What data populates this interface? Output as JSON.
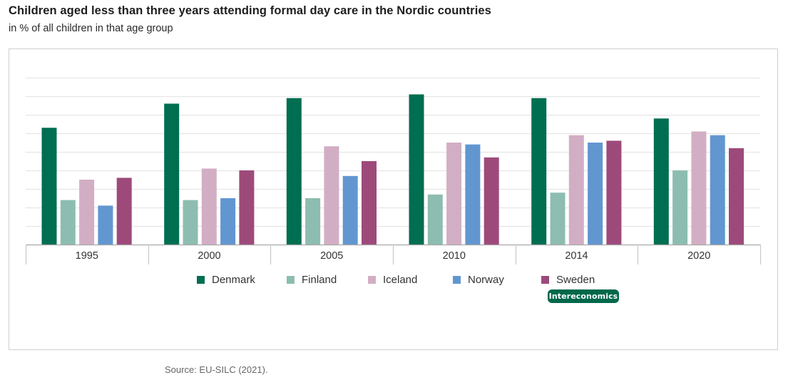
{
  "header": {
    "title": "Children aged less than three years attending formal day care in the Nordic countries",
    "subtitle": "in % of all children in that age group"
  },
  "branding": {
    "badge_label": "Intereconomics",
    "badge_color": "#00684a"
  },
  "footer": {
    "source": "Source: EU-SILC (2021)."
  },
  "chart_data": {
    "type": "bar",
    "title": "Children aged less than three years attending formal day care in the Nordic countries",
    "subtitle": "in % of all children in that age group",
    "xlabel": "",
    "ylabel": "",
    "unit": "%",
    "categories": [
      "1995",
      "2000",
      "2005",
      "2010",
      "2014",
      "2020"
    ],
    "series": [
      {
        "name": "Denmark",
        "color": "#006e51",
        "values": [
          63,
          76,
          79,
          81,
          79,
          68
        ]
      },
      {
        "name": "Finland",
        "color": "#8dbdb0",
        "values": [
          24,
          24,
          25,
          27,
          28,
          40
        ]
      },
      {
        "name": "Iceland",
        "color": "#d2aec4",
        "values": [
          35,
          41,
          53,
          55,
          59,
          61
        ]
      },
      {
        "name": "Norway",
        "color": "#6296d0",
        "values": [
          21,
          25,
          37,
          54,
          55,
          59
        ]
      },
      {
        "name": "Sweden",
        "color": "#9d4a7b",
        "values": [
          36,
          40,
          45,
          47,
          56,
          52
        ]
      }
    ],
    "ylim": [
      0,
      90
    ],
    "gridline_step": 10,
    "grid": true,
    "y_tick_labels_shown": false,
    "legend_position": "bottom-center",
    "source": "Source: EU-SILC (2021)."
  }
}
